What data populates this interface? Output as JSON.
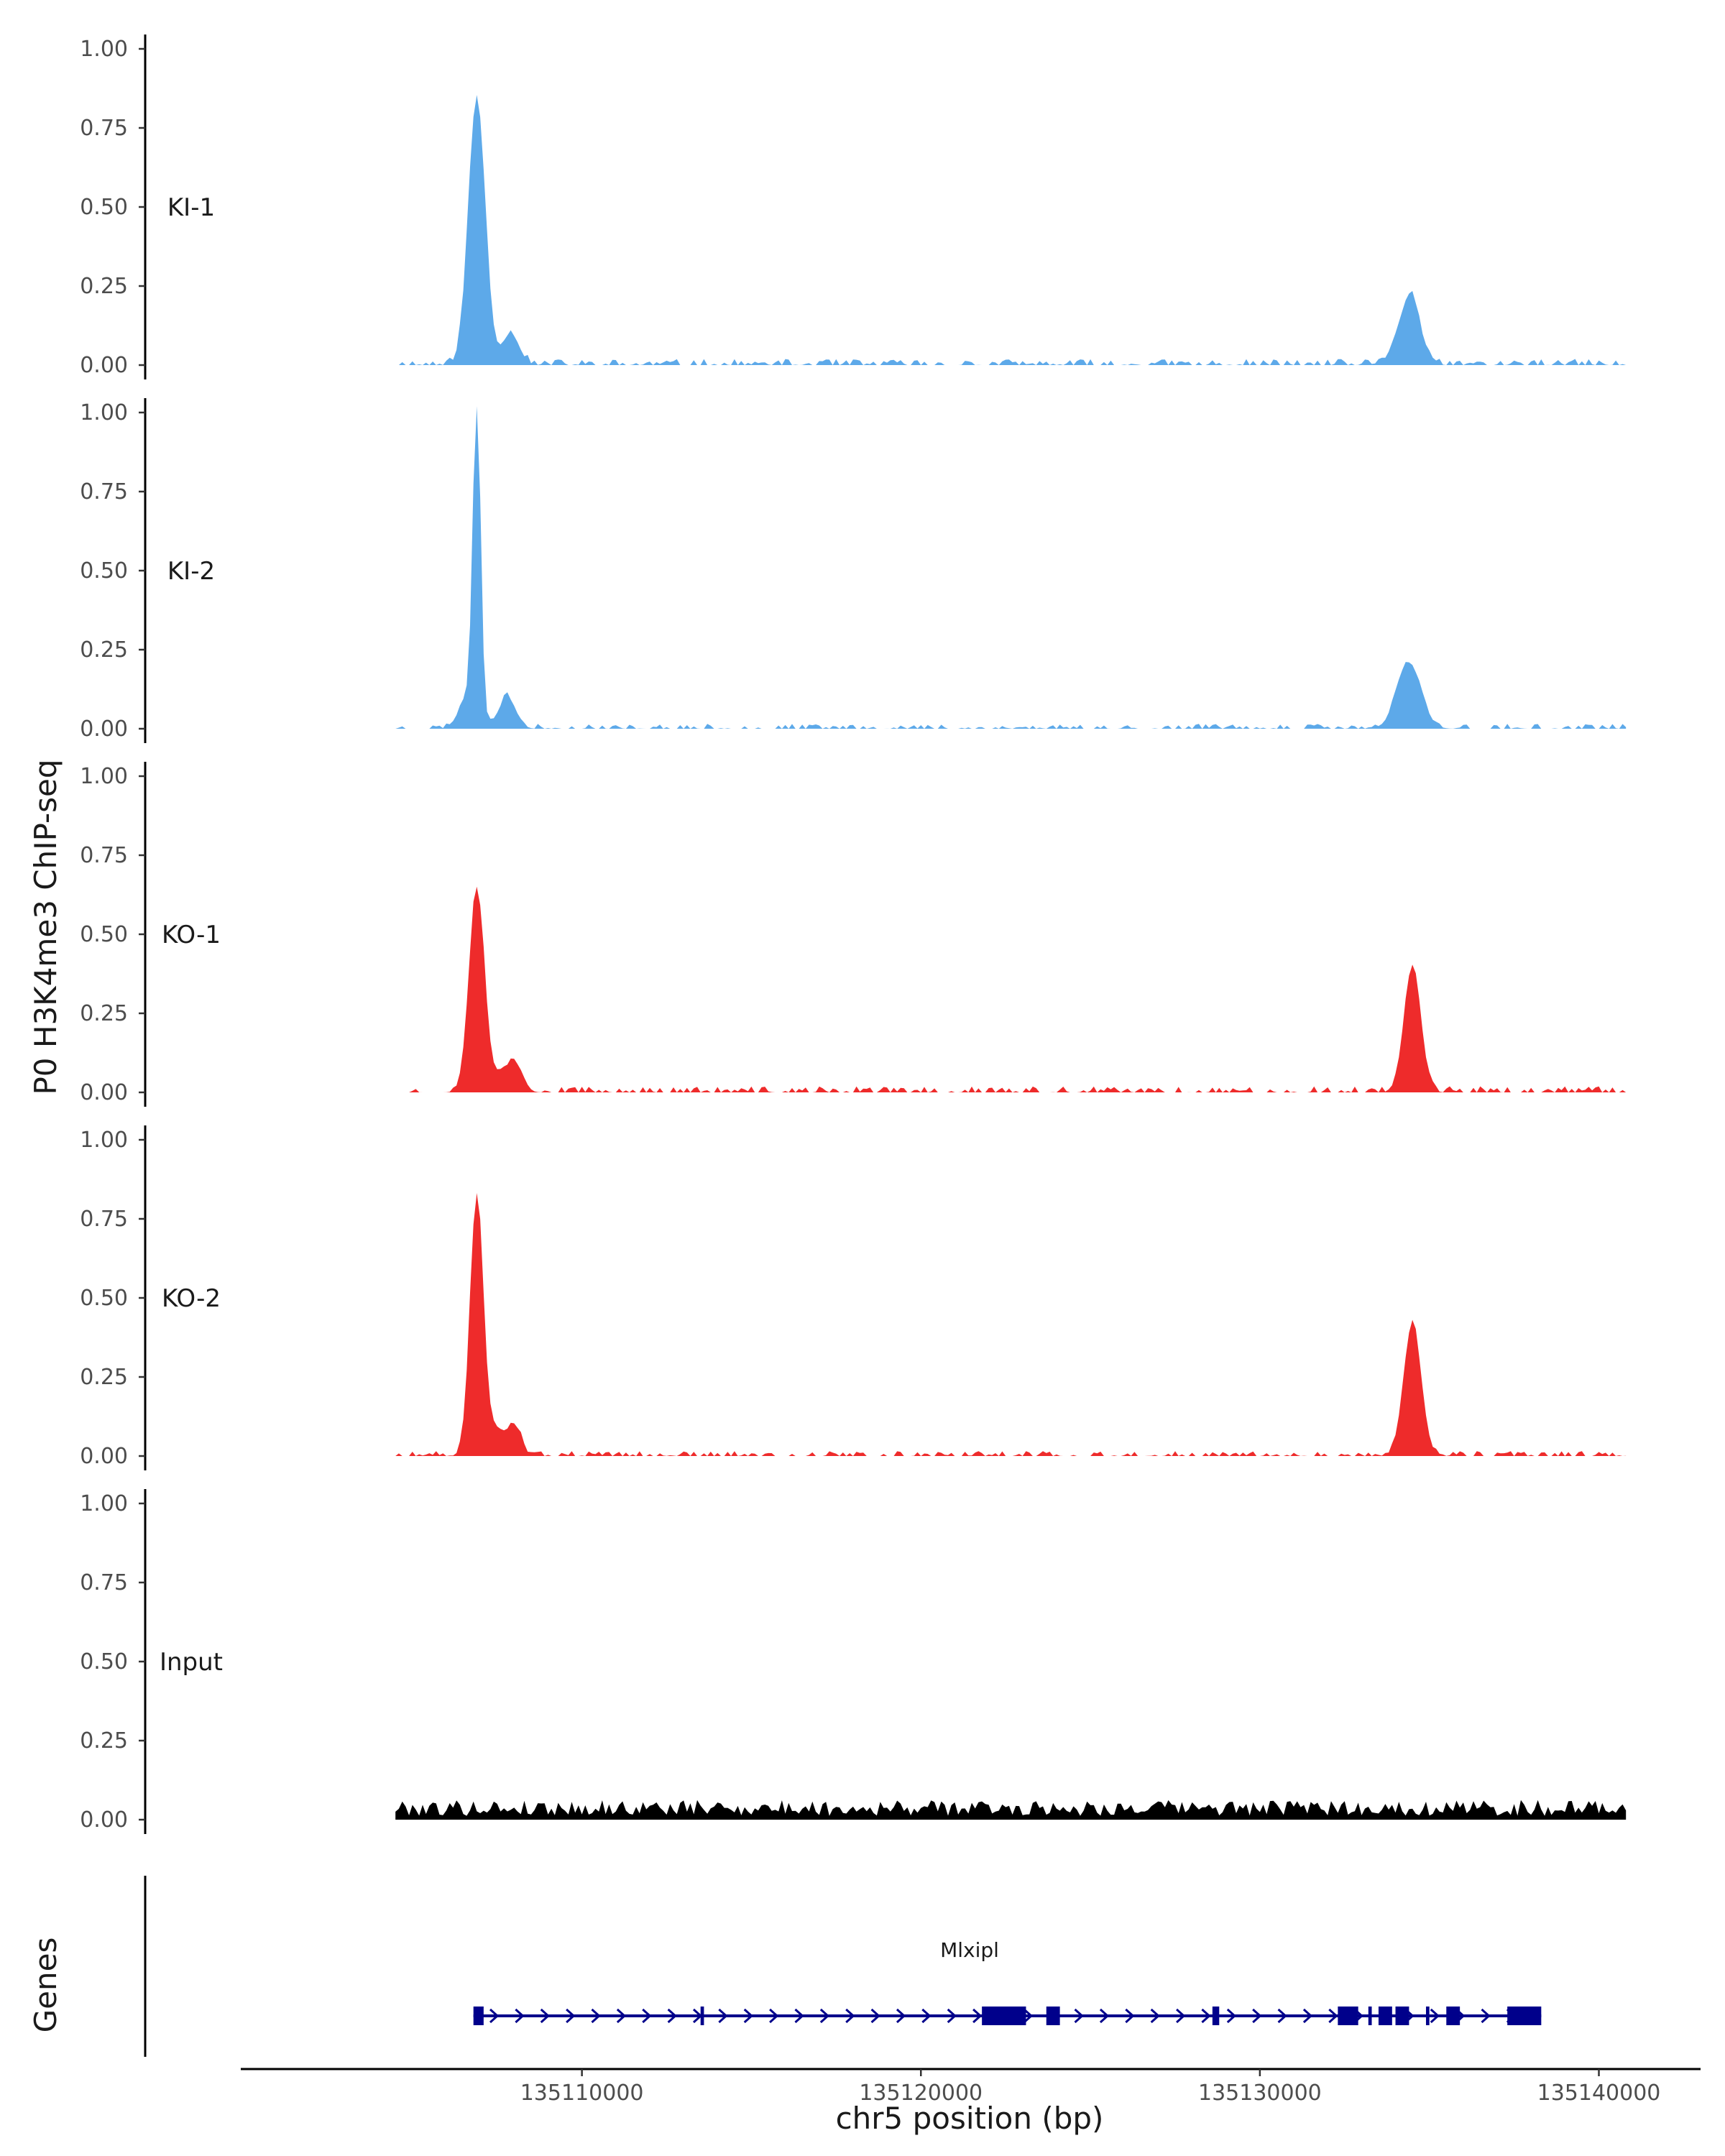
{
  "chart_data": {
    "type": "area",
    "ylabel": "P0 H3K4me3 ChIP-seq",
    "xlabel": "chr5 position (bp)",
    "xlim": [
      135100000,
      135143000
    ],
    "ylim": [
      0,
      1
    ],
    "yticks": [
      "0.00",
      "0.25",
      "0.50",
      "0.75",
      "1.00"
    ],
    "xticks": [
      {
        "value": 135110000,
        "label": "135110000"
      },
      {
        "value": 135120000,
        "label": "135120000"
      },
      {
        "value": 135130000,
        "label": "135130000"
      },
      {
        "value": 135140000,
        "label": "135140000"
      }
    ],
    "x_range": [
      135104500,
      135140800
    ],
    "tracks": [
      {
        "name": "KI-1",
        "color": "#5DA9E9",
        "peaks": [
          [
            135106900,
            0.85,
            250
          ],
          [
            135107900,
            0.1,
            250
          ],
          [
            135134500,
            0.2,
            250
          ],
          [
            135134100,
            0.08,
            250
          ]
        ],
        "noise": 0.025,
        "seed": 11
      },
      {
        "name": "KI-2",
        "color": "#5DA9E9",
        "peaks": [
          [
            135106900,
            1.0,
            110
          ],
          [
            135106700,
            0.12,
            280
          ],
          [
            135107800,
            0.1,
            250
          ],
          [
            135134400,
            0.21,
            350
          ]
        ],
        "noise": 0.02,
        "seed": 23
      },
      {
        "name": "KO-1",
        "color": "#EE2B2B",
        "peaks": [
          [
            135106900,
            0.65,
            230
          ],
          [
            135107700,
            0.07,
            250
          ],
          [
            135108100,
            0.07,
            200
          ],
          [
            135134500,
            0.4,
            250
          ]
        ],
        "noise": 0.025,
        "seed": 37
      },
      {
        "name": "KO-2",
        "color": "#EE2B2B",
        "peaks": [
          [
            135106900,
            0.83,
            200
          ],
          [
            135107500,
            0.08,
            200
          ],
          [
            135108000,
            0.1,
            200
          ],
          [
            135134500,
            0.42,
            260
          ]
        ],
        "noise": 0.02,
        "seed": 51
      },
      {
        "name": "Input",
        "color": "#000000",
        "peaks": [],
        "noise": 0.05,
        "seed": 79,
        "continuous": true
      }
    ],
    "genes_track": {
      "label": "Genes",
      "gene_name": "Mlxipl",
      "color": "#00008B",
      "start": 135106800,
      "end": 135138300,
      "exons": [
        [
          135106800,
          135107100
        ],
        [
          135113500,
          135113600
        ],
        [
          135121800,
          135123100
        ],
        [
          135123700,
          135124100
        ],
        [
          135128600,
          135128800
        ],
        [
          135132300,
          135132900
        ],
        [
          135133200,
          135133300
        ],
        [
          135133500,
          135133900
        ],
        [
          135134000,
          135134400
        ],
        [
          135134900,
          135135000
        ],
        [
          135135500,
          135135900
        ],
        [
          135137300,
          135138300
        ]
      ]
    }
  }
}
